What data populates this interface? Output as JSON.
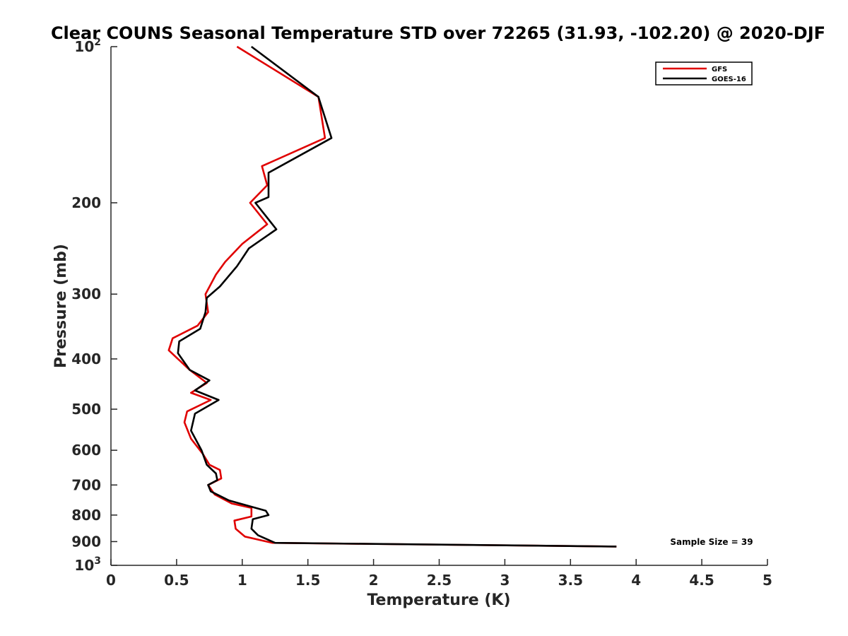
{
  "chart_data": {
    "type": "line",
    "title": "Clear COUNS Seasonal Temperature STD over 72265 (31.93, -102.20) @ 2020-DJF",
    "xlabel": "Temperature (K)",
    "ylabel": "Pressure (mb)",
    "xlim": [
      0,
      5
    ],
    "ylim": [
      100,
      1000
    ],
    "y_scale": "log",
    "y_reversed": true,
    "grid": false,
    "legend_position": "top-right",
    "x_ticks": [
      "0",
      "0.5",
      "1",
      "1.5",
      "2",
      "2.5",
      "3",
      "3.5",
      "4",
      "4.5",
      "5"
    ],
    "y_ticks": [
      {
        "value": 200,
        "label": "200"
      },
      {
        "value": 300,
        "label": "300"
      },
      {
        "value": 400,
        "label": "400"
      },
      {
        "value": 500,
        "label": "500"
      },
      {
        "value": 600,
        "label": "600"
      },
      {
        "value": 700,
        "label": "700"
      },
      {
        "value": 800,
        "label": "800"
      },
      {
        "value": 900,
        "label": "900"
      }
    ],
    "y_power_ticks": [
      {
        "value": 100,
        "base": "10",
        "exp": "2"
      },
      {
        "value": 1000,
        "base": "10",
        "exp": "3"
      }
    ],
    "annotation": "Sample Size = 39",
    "series": [
      {
        "name": "GFS",
        "color": "#e00000",
        "points": [
          [
            0.96,
            100
          ],
          [
            1.58,
            125
          ],
          [
            1.63,
            150
          ],
          [
            1.15,
            170
          ],
          [
            1.19,
            185
          ],
          [
            1.06,
            200
          ],
          [
            1.19,
            220
          ],
          [
            1.0,
            240
          ],
          [
            0.87,
            260
          ],
          [
            0.8,
            275
          ],
          [
            0.72,
            300
          ],
          [
            0.74,
            325
          ],
          [
            0.66,
            345
          ],
          [
            0.47,
            365
          ],
          [
            0.44,
            385
          ],
          [
            0.51,
            400
          ],
          [
            0.6,
            420
          ],
          [
            0.73,
            445
          ],
          [
            0.61,
            465
          ],
          [
            0.76,
            480
          ],
          [
            0.58,
            505
          ],
          [
            0.56,
            530
          ],
          [
            0.61,
            570
          ],
          [
            0.7,
            610
          ],
          [
            0.75,
            640
          ],
          [
            0.83,
            655
          ],
          [
            0.84,
            680
          ],
          [
            0.74,
            700
          ],
          [
            0.79,
            730
          ],
          [
            0.92,
            760
          ],
          [
            1.07,
            775
          ],
          [
            1.07,
            805
          ],
          [
            0.94,
            820
          ],
          [
            0.95,
            850
          ],
          [
            1.02,
            880
          ],
          [
            1.23,
            905
          ],
          [
            3.85,
            920
          ]
        ]
      },
      {
        "name": "GOES-16",
        "color": "#000000",
        "points": [
          [
            1.07,
            100
          ],
          [
            1.58,
            125
          ],
          [
            1.68,
            150
          ],
          [
            1.2,
            175
          ],
          [
            1.2,
            195
          ],
          [
            1.1,
            200
          ],
          [
            1.26,
            225
          ],
          [
            1.05,
            245
          ],
          [
            0.96,
            265
          ],
          [
            0.83,
            290
          ],
          [
            0.73,
            305
          ],
          [
            0.72,
            325
          ],
          [
            0.68,
            350
          ],
          [
            0.52,
            370
          ],
          [
            0.51,
            390
          ],
          [
            0.6,
            420
          ],
          [
            0.75,
            440
          ],
          [
            0.64,
            460
          ],
          [
            0.82,
            480
          ],
          [
            0.64,
            510
          ],
          [
            0.61,
            550
          ],
          [
            0.69,
            600
          ],
          [
            0.73,
            640
          ],
          [
            0.8,
            665
          ],
          [
            0.81,
            685
          ],
          [
            0.74,
            700
          ],
          [
            0.76,
            720
          ],
          [
            0.9,
            750
          ],
          [
            1.18,
            785
          ],
          [
            1.2,
            800
          ],
          [
            1.08,
            815
          ],
          [
            1.07,
            850
          ],
          [
            1.12,
            875
          ],
          [
            1.25,
            905
          ],
          [
            3.85,
            920
          ]
        ]
      }
    ]
  }
}
